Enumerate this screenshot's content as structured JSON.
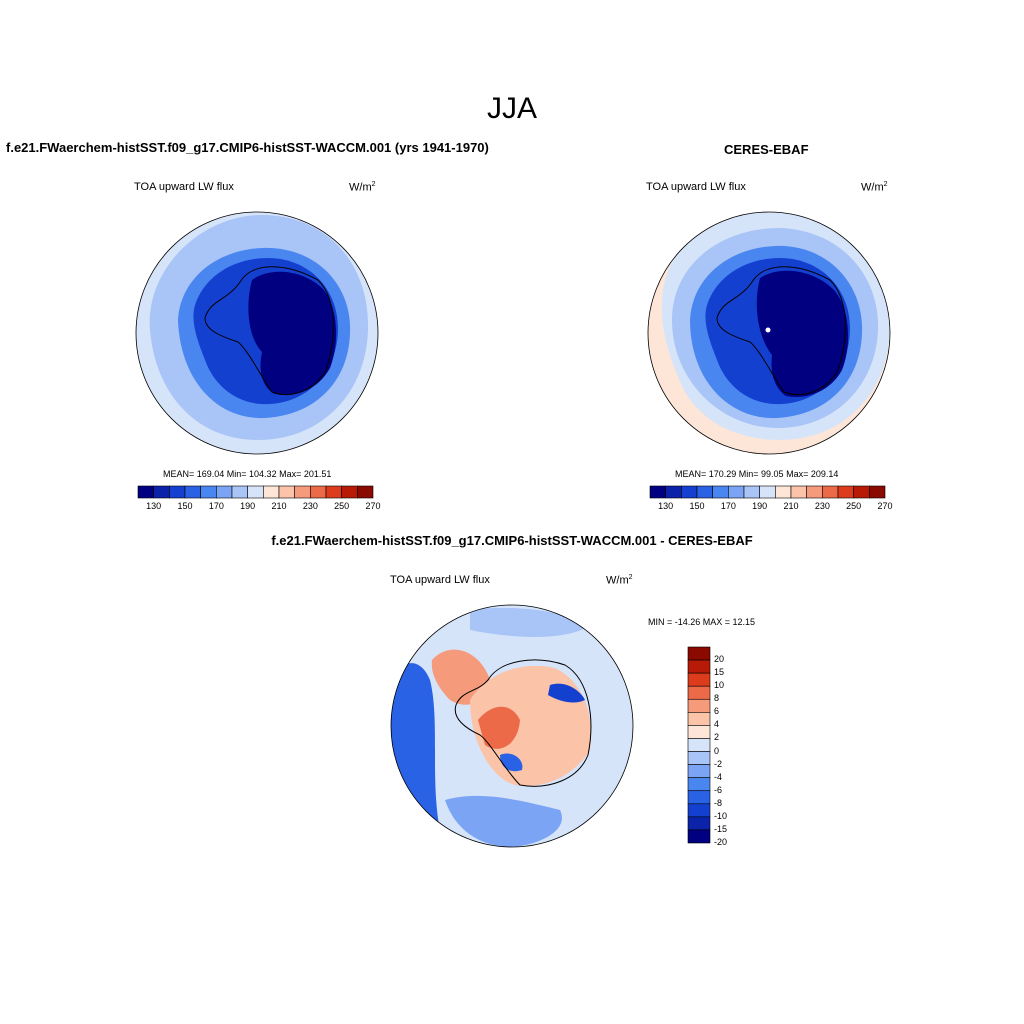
{
  "season_title": "JJA",
  "panels": {
    "model": {
      "title": "f.e21.FWaerchem-histSST.f09_g17.CMIP6-histSST-WACCM.001 (yrs 1941-1970)",
      "variable": "TOA upward LW flux",
      "units_base": "W/m",
      "units_exp": "2",
      "stats": "MEAN= 169.04  Min= 104.32  Max= 201.51"
    },
    "obs": {
      "title": "CERES-EBAF",
      "variable": "TOA upward LW flux",
      "units_base": "W/m",
      "units_exp": "2",
      "stats": "MEAN= 170.29  Min=  99.05  Max= 209.14"
    },
    "diff": {
      "title": "f.e21.FWaerchem-histSST.f09_g17.CMIP6-histSST-WACCM.001 - CERES-EBAF",
      "variable": "TOA upward LW flux",
      "units_base": "W/m",
      "units_exp": "2",
      "minmax": "MIN = -14.26 MAX =  12.15"
    }
  },
  "colorbars": {
    "absolute": {
      "colors": [
        "#000080",
        "#0a23a8",
        "#1440d0",
        "#2a62e6",
        "#4a86f0",
        "#7ba5f4",
        "#a9c4f6",
        "#d6e4fa",
        "#fde6d8",
        "#fbc3a8",
        "#f59a7a",
        "#ec6a48",
        "#dd3c1c",
        "#b81a08",
        "#8a0a00"
      ],
      "tick_labels": [
        "130",
        "150",
        "170",
        "190",
        "210",
        "230",
        "250",
        "270"
      ]
    },
    "difference": {
      "colors": [
        "#8a0a00",
        "#b81a08",
        "#dd3c1c",
        "#ec6a48",
        "#f59a7a",
        "#fbc3a8",
        "#fde6d8",
        "#d6e4fa",
        "#a9c4f6",
        "#7ba5f4",
        "#4a86f0",
        "#2a62e6",
        "#1440d0",
        "#0a23a8",
        "#000080"
      ],
      "tick_labels": [
        "20",
        "15",
        "10",
        "8",
        "6",
        "4",
        "2",
        "0",
        "-2",
        "-4",
        "-6",
        "-8",
        "-10",
        "-15",
        "-20"
      ]
    }
  },
  "map_colors": {
    "outer_model": "#d6e4fa",
    "ring_light": "#a9c4f6",
    "ring_mid": "#4a86f0",
    "ring_dark": "#1440d0",
    "core": "#000080",
    "obs_warm_edge": "#fde6d8",
    "diff_bg": "#d6e4fa"
  }
}
